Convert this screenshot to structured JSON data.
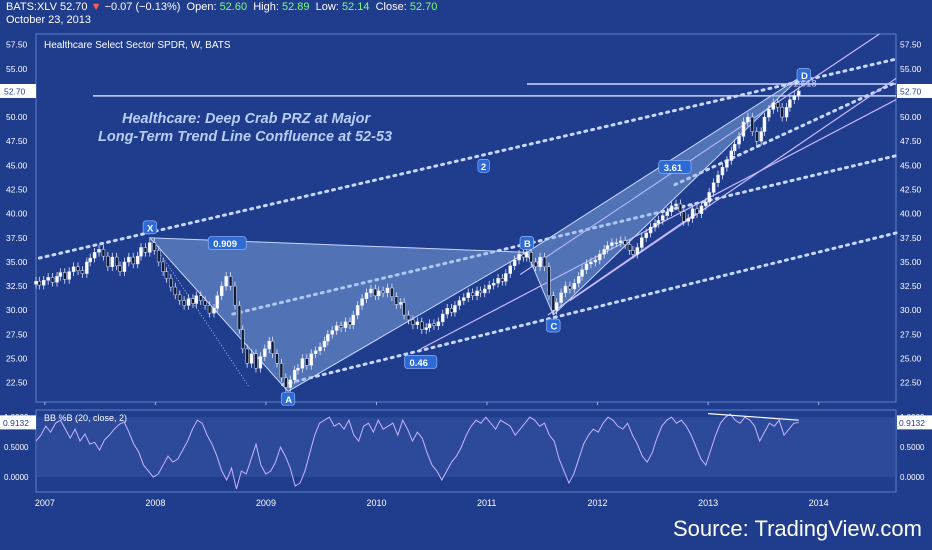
{
  "header": {
    "symbol": "BATS:XLV",
    "last": "52.70",
    "change": "−0.07 (−0.13%)",
    "open_label": "Open:",
    "open": "52.60",
    "high_label": "High:",
    "high": "52.89",
    "low_label": "Low:",
    "low": "52.14",
    "close_label": "Close:",
    "close": "52.70",
    "date": "October 23, 2013"
  },
  "source": "Source: TradingView.com",
  "colors": {
    "background": "#1f3c8d",
    "pattern_fill": "#8fb4e6",
    "line": "#c9d8ff",
    "channel": "#c7b8ff",
    "label_bg": "#2d6ad6",
    "title": "#b8cff5",
    "bull": "#ffffff",
    "bear": "#101a30"
  },
  "chart_data": [
    {
      "type": "candlestick",
      "title": "Healthcare Select Sector SPDR, W, BATS",
      "annotation_title": [
        "Healthcare: Deep Crab PRZ at Major",
        "Long-Term Trend Line Confluence at 52-53"
      ],
      "x_ticks": [
        "2007",
        "2008",
        "2009",
        "2010",
        "2011",
        "2012",
        "2013",
        "2014"
      ],
      "y_ticks": [
        "57.50",
        "55.00",
        "52.50",
        "50.00",
        "47.50",
        "45.00",
        "42.50",
        "40.00",
        "37.50",
        "35.00",
        "32.50",
        "30.00",
        "27.50",
        "25.00",
        "22.50"
      ],
      "ylim": [
        20.5,
        58.6
      ],
      "last_price": "52.70",
      "pattern_points": [
        {
          "label": "X",
          "date": "2007.95",
          "price": 37.5
        },
        {
          "label": "A",
          "date": "2009.20",
          "price": 21.6
        },
        {
          "label": "B",
          "date": "2011.36",
          "price": 36.0
        },
        {
          "label": "C",
          "date": "2011.60",
          "price": 29.5
        },
        {
          "label": "D",
          "date": "2013.83",
          "price": 54.1
        }
      ],
      "ratios": [
        {
          "label": "0.909",
          "date": "2008.65",
          "price": 36.9
        },
        {
          "label": "0.46",
          "date": "2010.40",
          "price": 24.6
        },
        {
          "label": "3.61",
          "date": "2012.70",
          "price": 44.8
        },
        {
          "label": "1.618",
          "date": "2013.93",
          "price": 53.5
        },
        {
          "label": "2",
          "date": "2010.97",
          "price": 44.9
        }
      ],
      "price_series": [
        [
          "2006.92",
          33.0
        ],
        [
          "2006.95",
          32.6
        ],
        [
          "2006.99",
          33.1
        ],
        [
          "2007.03",
          33.4
        ],
        [
          "2007.07",
          32.9
        ],
        [
          "2007.11",
          33.5
        ],
        [
          "2007.14",
          33.9
        ],
        [
          "2007.18",
          33.2
        ],
        [
          "2007.22",
          34.0
        ],
        [
          "2007.26",
          34.5
        ],
        [
          "2007.30",
          34.1
        ],
        [
          "2007.34",
          33.8
        ],
        [
          "2007.38",
          35.0
        ],
        [
          "2007.41",
          35.4
        ],
        [
          "2007.45",
          36.0
        ],
        [
          "2007.49",
          36.3
        ],
        [
          "2007.53",
          35.6
        ],
        [
          "2007.57",
          34.5
        ],
        [
          "2007.61",
          35.5
        ],
        [
          "2007.65",
          34.6
        ],
        [
          "2007.68",
          34.0
        ],
        [
          "2007.72",
          35.0
        ],
        [
          "2007.76",
          35.5
        ],
        [
          "2007.80",
          34.8
        ],
        [
          "2007.84",
          35.6
        ],
        [
          "2007.87",
          36.5
        ],
        [
          "2007.91",
          36.0
        ],
        [
          "2007.95",
          37.0
        ],
        [
          "2007.99",
          36.2
        ],
        [
          "2008.03",
          35.0
        ],
        [
          "2008.07",
          34.0
        ],
        [
          "2008.10",
          33.3
        ],
        [
          "2008.14",
          32.4
        ],
        [
          "2008.18",
          31.6
        ],
        [
          "2008.22",
          31.0
        ],
        [
          "2008.26",
          30.5
        ],
        [
          "2008.30",
          31.2
        ],
        [
          "2008.34",
          30.7
        ],
        [
          "2008.37",
          31.5
        ],
        [
          "2008.41",
          31.0
        ],
        [
          "2008.45",
          30.5
        ],
        [
          "2008.49",
          29.7
        ],
        [
          "2008.53",
          30.2
        ],
        [
          "2008.56",
          31.5
        ],
        [
          "2008.60",
          32.5
        ],
        [
          "2008.64",
          33.5
        ],
        [
          "2008.68",
          32.5
        ],
        [
          "2008.72",
          30.5
        ],
        [
          "2008.76",
          28.0
        ],
        [
          "2008.79",
          26.0
        ],
        [
          "2008.83",
          24.5
        ],
        [
          "2008.87",
          25.5
        ],
        [
          "2008.91",
          24.0
        ],
        [
          "2008.95",
          25.2
        ],
        [
          "2008.99",
          26.0
        ],
        [
          "2009.03",
          26.8
        ],
        [
          "2009.06",
          25.5
        ],
        [
          "2009.10",
          24.5
        ],
        [
          "2009.14",
          23.0
        ],
        [
          "2009.18",
          22.0
        ],
        [
          "2009.22",
          22.8
        ],
        [
          "2009.26",
          23.8
        ],
        [
          "2009.29",
          24.0
        ],
        [
          "2009.33",
          25.0
        ],
        [
          "2009.37",
          24.3
        ],
        [
          "2009.41",
          25.5
        ],
        [
          "2009.45",
          25.8
        ],
        [
          "2009.49",
          26.2
        ],
        [
          "2009.53",
          26.8
        ],
        [
          "2009.56",
          27.5
        ],
        [
          "2009.60",
          27.9
        ],
        [
          "2009.64",
          28.4
        ],
        [
          "2009.68",
          28.2
        ],
        [
          "2009.72",
          28.8
        ],
        [
          "2009.76",
          28.5
        ],
        [
          "2009.79",
          29.5
        ],
        [
          "2009.83",
          30.5
        ],
        [
          "2009.87",
          31.2
        ],
        [
          "2009.91",
          31.8
        ],
        [
          "2009.95",
          32.2
        ],
        [
          "2009.99",
          31.5
        ],
        [
          "2010.02",
          32.0
        ],
        [
          "2010.06",
          31.8
        ],
        [
          "2010.10",
          32.3
        ],
        [
          "2010.14",
          31.4
        ],
        [
          "2010.18",
          30.6
        ],
        [
          "2010.22",
          30.8
        ],
        [
          "2010.25",
          29.5
        ],
        [
          "2010.29",
          29.0
        ],
        [
          "2010.33",
          28.5
        ],
        [
          "2010.37",
          28.8
        ],
        [
          "2010.41",
          28.0
        ],
        [
          "2010.45",
          28.2
        ],
        [
          "2010.48",
          28.6
        ],
        [
          "2010.52",
          28.4
        ],
        [
          "2010.56",
          28.8
        ],
        [
          "2010.60",
          29.6
        ],
        [
          "2010.64",
          30.2
        ],
        [
          "2010.68",
          29.8
        ],
        [
          "2010.71",
          30.5
        ],
        [
          "2010.75",
          31.0
        ],
        [
          "2010.79",
          31.3
        ],
        [
          "2010.83",
          31.8
        ],
        [
          "2010.87",
          31.5
        ],
        [
          "2010.91",
          32.0
        ],
        [
          "2010.94",
          31.8
        ],
        [
          "2010.98",
          32.2
        ],
        [
          "2011.02",
          32.6
        ],
        [
          "2011.06",
          32.8
        ],
        [
          "2011.10",
          33.3
        ],
        [
          "2011.14",
          33.0
        ],
        [
          "2011.17",
          33.8
        ],
        [
          "2011.21",
          34.6
        ],
        [
          "2011.25",
          35.2
        ],
        [
          "2011.29",
          35.8
        ],
        [
          "2011.33",
          35.5
        ],
        [
          "2011.36",
          36.0
        ],
        [
          "2011.40",
          35.0
        ],
        [
          "2011.44",
          34.5
        ],
        [
          "2011.48",
          35.5
        ],
        [
          "2011.52",
          34.5
        ],
        [
          "2011.56",
          31.5
        ],
        [
          "2011.60",
          30.0
        ],
        [
          "2011.63",
          30.8
        ],
        [
          "2011.67",
          31.8
        ],
        [
          "2011.71",
          32.5
        ],
        [
          "2011.75",
          32.2
        ],
        [
          "2011.79",
          32.8
        ],
        [
          "2011.83",
          33.5
        ],
        [
          "2011.86",
          34.2
        ],
        [
          "2011.90",
          34.8
        ],
        [
          "2011.94",
          35.0
        ],
        [
          "2011.98",
          35.2
        ],
        [
          "2012.02",
          35.8
        ],
        [
          "2012.06",
          36.3
        ],
        [
          "2012.09",
          36.7
        ],
        [
          "2012.13",
          37.0
        ],
        [
          "2012.17",
          37.0
        ],
        [
          "2012.21",
          37.2
        ],
        [
          "2012.25",
          36.8
        ],
        [
          "2012.29",
          36.2
        ],
        [
          "2012.32",
          35.8
        ],
        [
          "2012.36",
          36.5
        ],
        [
          "2012.40",
          37.5
        ],
        [
          "2012.44",
          38.0
        ],
        [
          "2012.48",
          38.6
        ],
        [
          "2012.52",
          39.0
        ],
        [
          "2012.55",
          39.3
        ],
        [
          "2012.59",
          39.8
        ],
        [
          "2012.63",
          40.2
        ],
        [
          "2012.67",
          40.8
        ],
        [
          "2012.71",
          41.0
        ],
        [
          "2012.75",
          40.2
        ],
        [
          "2012.78",
          39.2
        ],
        [
          "2012.82",
          39.5
        ],
        [
          "2012.86",
          40.5
        ],
        [
          "2012.90",
          40.0
        ],
        [
          "2012.94",
          40.8
        ],
        [
          "2012.98",
          41.2
        ],
        [
          "2013.01",
          42.2
        ],
        [
          "2013.05",
          43.2
        ],
        [
          "2013.09",
          44.0
        ],
        [
          "2013.13",
          44.8
        ],
        [
          "2013.17",
          45.5
        ],
        [
          "2013.21",
          46.5
        ],
        [
          "2013.24",
          47.2
        ],
        [
          "2013.28",
          48.0
        ],
        [
          "2013.32",
          49.5
        ],
        [
          "2013.36",
          50.0
        ],
        [
          "2013.40",
          48.5
        ],
        [
          "2013.44",
          47.5
        ],
        [
          "2013.48",
          48.5
        ],
        [
          "2013.51",
          50.0
        ],
        [
          "2013.55",
          50.8
        ],
        [
          "2013.59",
          51.5
        ],
        [
          "2013.63",
          51.0
        ],
        [
          "2013.67",
          50.0
        ],
        [
          "2013.71",
          51.0
        ],
        [
          "2013.74",
          51.8
        ],
        [
          "2013.78",
          52.2
        ],
        [
          "2013.82",
          52.7
        ]
      ]
    },
    {
      "type": "line",
      "title": "BB %B (20, close, 2)",
      "y_ticks": [
        "1.0000",
        "0.5000",
        "0.0000"
      ],
      "ylim": [
        -0.25,
        1.12
      ],
      "last_value": "0.9132",
      "series": [
        {
          "name": "BB %B (20, close, 2)",
          "values": [
            0.6,
            0.7,
            0.85,
            0.75,
            0.9,
            0.95,
            0.8,
            0.65,
            0.8,
            0.6,
            0.72,
            0.55,
            0.58,
            0.45,
            0.62,
            0.7,
            0.8,
            0.88,
            0.92,
            0.75,
            0.55,
            0.42,
            0.2,
            0.1,
            0.0,
            0.05,
            0.2,
            0.35,
            0.25,
            0.3,
            0.45,
            0.6,
            0.8,
            0.95,
            0.9,
            0.7,
            0.55,
            0.35,
            0.1,
            -0.05,
            0.15,
            -0.2,
            0.1,
            0.05,
            0.3,
            0.55,
            0.2,
            0.05,
            0.1,
            0.25,
            0.5,
            0.35,
            0.15,
            -0.15,
            -0.1,
            0.1,
            0.4,
            0.7,
            0.9,
            0.95,
            1.0,
            0.85,
            0.9,
            0.8,
            0.95,
            0.7,
            0.6,
            0.85,
            0.9,
            0.75,
            0.95,
            0.8,
            0.85,
            0.9,
            0.7,
            0.95,
            0.8,
            0.6,
            0.75,
            0.65,
            0.4,
            0.2,
            0.1,
            -0.05,
            0.1,
            0.25,
            0.35,
            0.5,
            0.7,
            0.85,
            0.95,
            0.9,
            1.0,
            0.9,
            0.8,
            0.95,
            0.9,
            0.85,
            0.7,
            0.8,
            0.9,
            1.0,
            0.95,
            0.85,
            0.9,
            0.7,
            0.6,
            0.3,
            0.1,
            -0.1,
            0.05,
            0.3,
            0.55,
            0.7,
            0.8,
            0.75,
            0.9,
            1.0,
            0.95,
            0.85,
            0.8,
            0.9,
            0.7,
            0.55,
            0.35,
            0.25,
            0.4,
            0.65,
            0.85,
            0.95,
            1.0,
            0.9,
            0.95,
            0.85,
            0.7,
            0.5,
            0.3,
            0.2,
            0.45,
            0.7,
            0.9,
            1.0,
            1.05,
            0.95,
            0.9,
            1.0,
            0.95,
            0.85,
            0.6,
            0.75,
            0.9,
            0.85,
            0.95,
            0.7,
            0.8,
            0.9,
            0.91
          ]
        }
      ]
    }
  ]
}
